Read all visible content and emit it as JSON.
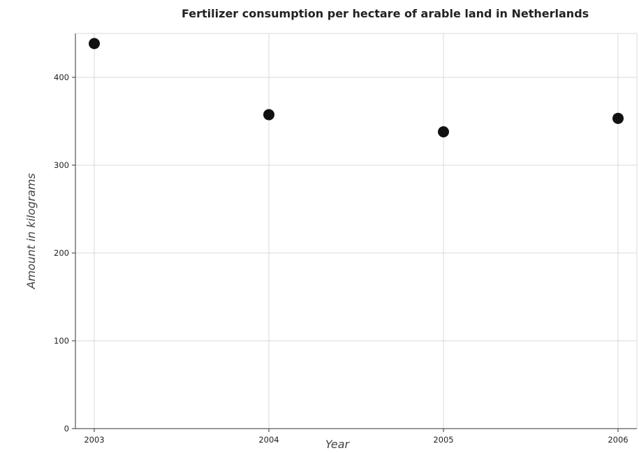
{
  "chart_data": {
    "type": "scatter",
    "title": "Fertilizer consumption per hectare of arable land in Netherlands",
    "xlabel": "Year",
    "ylabel": "Amount in kilograms",
    "categories": [
      "2003",
      "2004",
      "2005",
      "2006"
    ],
    "series": [
      {
        "values": [
          438.5,
          357.5,
          338.0,
          353.3
        ]
      }
    ],
    "ylim": [
      0,
      450
    ],
    "yticks": [
      0,
      100,
      200,
      300,
      400
    ],
    "ytick_labels": [
      "0",
      "100",
      "200",
      "300",
      "400"
    ],
    "grid": true,
    "legend": "none",
    "colors": {
      "marker": "#111111",
      "grid": "#d9d9d9",
      "axis": "#333333"
    }
  }
}
